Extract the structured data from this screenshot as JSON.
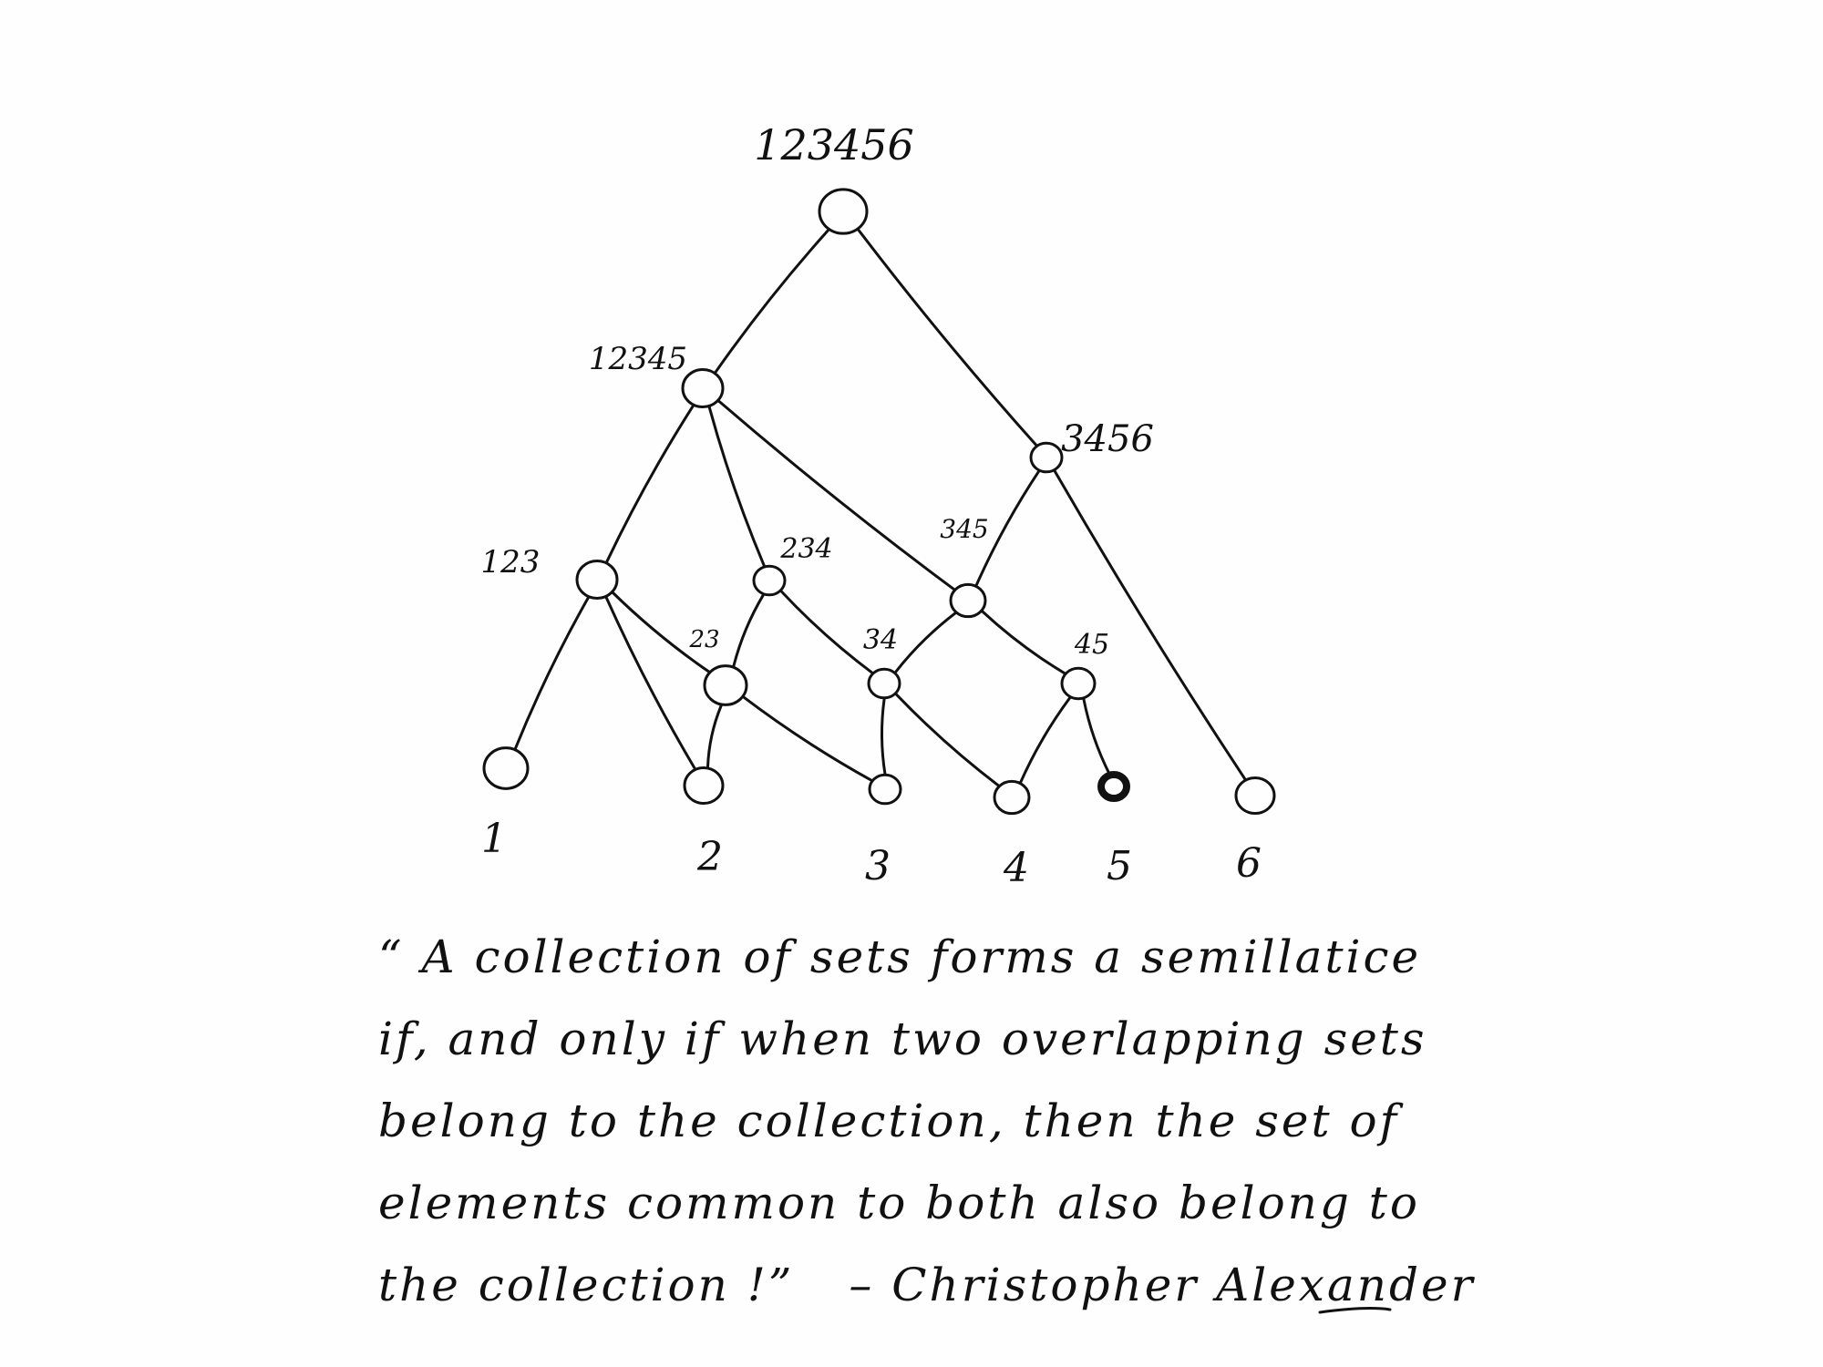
{
  "diagram": {
    "nodes": [
      {
        "id": "n123456",
        "label": "123456",
        "emphasis": false
      },
      {
        "id": "n12345",
        "label": "12345",
        "emphasis": false
      },
      {
        "id": "n3456",
        "label": "3456",
        "emphasis": false
      },
      {
        "id": "n123",
        "label": "123",
        "emphasis": false
      },
      {
        "id": "n234",
        "label": "234",
        "emphasis": false
      },
      {
        "id": "n345",
        "label": "345",
        "emphasis": false
      },
      {
        "id": "n23",
        "label": "23",
        "emphasis": false
      },
      {
        "id": "n34",
        "label": "34",
        "emphasis": false
      },
      {
        "id": "n45",
        "label": "45",
        "emphasis": false
      },
      {
        "id": "n1",
        "label": "1",
        "emphasis": false
      },
      {
        "id": "n2",
        "label": "2",
        "emphasis": false
      },
      {
        "id": "n3",
        "label": "3",
        "emphasis": false
      },
      {
        "id": "n4",
        "label": "4",
        "emphasis": false
      },
      {
        "id": "n5",
        "label": "5",
        "emphasis": true
      },
      {
        "id": "n6",
        "label": "6",
        "emphasis": false
      }
    ],
    "edges": [
      [
        "n123456",
        "n12345"
      ],
      [
        "n123456",
        "n3456"
      ],
      [
        "n12345",
        "n123"
      ],
      [
        "n12345",
        "n234"
      ],
      [
        "n12345",
        "n345"
      ],
      [
        "n3456",
        "n345"
      ],
      [
        "n3456",
        "n6"
      ],
      [
        "n123",
        "n1"
      ],
      [
        "n123",
        "n2"
      ],
      [
        "n123",
        "n23"
      ],
      [
        "n234",
        "n23"
      ],
      [
        "n234",
        "n34"
      ],
      [
        "n345",
        "n34"
      ],
      [
        "n345",
        "n45"
      ],
      [
        "n23",
        "n2"
      ],
      [
        "n23",
        "n3"
      ],
      [
        "n34",
        "n3"
      ],
      [
        "n34",
        "n4"
      ],
      [
        "n45",
        "n4"
      ],
      [
        "n45",
        "n5"
      ]
    ]
  },
  "quote": {
    "line1": "“ A collection of sets forms a semillatice",
    "line2": "if, and only if when two overlapping sets",
    "line3": "belong to the collection, then the set of",
    "line4": "elements common to both also belong to",
    "line5": "the collection !”",
    "attribution": "– Christopher Alexander"
  },
  "colors": {
    "ink": "#111111",
    "paper": "#fefefe"
  }
}
